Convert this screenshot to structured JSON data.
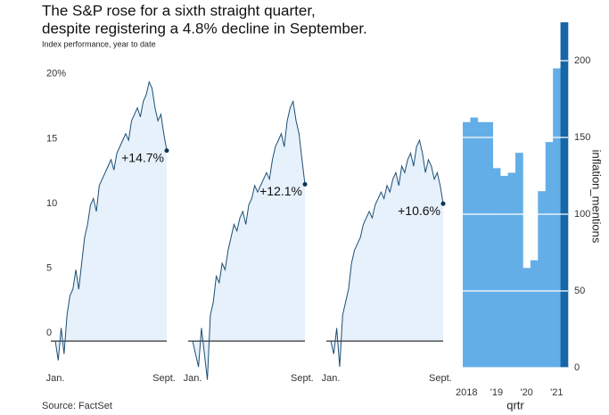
{
  "title_lines": [
    "The S&P rose for a sixth straight quarter,",
    "despite registering a 4.8% decline in September."
  ],
  "subtitle": "Index performance, year to date",
  "source": "Source: FactSet",
  "chart_data": [
    {
      "type": "area",
      "x": [
        0,
        1,
        2,
        3,
        4,
        5,
        6,
        7,
        8,
        9,
        10,
        11,
        12,
        13,
        14,
        15,
        16,
        17,
        18,
        19,
        20,
        21,
        22,
        23,
        24,
        25,
        26,
        27,
        28,
        29,
        30,
        31,
        32,
        33,
        34,
        35,
        36,
        37,
        38
      ],
      "values": [
        0,
        -1.5,
        1,
        -1,
        2,
        3.5,
        4,
        5.5,
        4,
        6,
        8,
        9,
        10.5,
        11,
        10,
        12,
        12.5,
        13,
        13.5,
        14,
        13.2,
        14.5,
        15,
        15.5,
        16,
        15.5,
        17,
        17.5,
        18,
        17.3,
        18.5,
        19,
        20,
        19.5,
        18,
        17,
        17.5,
        16,
        14.7
      ],
      "annotation": "+14.7%",
      "color": "#1d4f73",
      "fill": "#e6f1fc",
      "xlim": [
        0,
        38
      ],
      "xticks": [
        {
          "value": 0,
          "label": "Jan."
        },
        {
          "value": 35,
          "label": "Sept."
        }
      ],
      "ylim": [
        -2.2,
        20.4
      ],
      "yticks": [
        0,
        5,
        10,
        15,
        {
          "value": 20,
          "label": "20%"
        }
      ]
    },
    {
      "type": "area",
      "x": [
        0,
        1,
        2,
        3,
        4,
        5,
        6,
        7,
        8,
        9,
        10,
        11,
        12,
        13,
        14,
        15,
        16,
        17,
        18,
        19,
        20,
        21,
        22,
        23,
        24,
        25,
        26,
        27,
        28,
        29,
        30,
        31,
        32,
        33,
        34,
        35,
        36,
        37,
        38
      ],
      "values": [
        0,
        -1,
        -2,
        1,
        -1,
        -3,
        2,
        3,
        5,
        4.5,
        6,
        5.5,
        7,
        8,
        9,
        8.5,
        9.5,
        10,
        9,
        10.5,
        11,
        12,
        11.5,
        12,
        12.5,
        13,
        12.5,
        14,
        15,
        15.5,
        16,
        15,
        17,
        18,
        18.5,
        17,
        16,
        14,
        12.1
      ],
      "annotation": "+12.1%",
      "color": "#1d4f73",
      "fill": "#e6f1fc",
      "xlim": [
        0,
        38
      ],
      "xticks": [
        {
          "value": 0,
          "label": "Jan."
        },
        {
          "value": 35,
          "label": "Sept."
        }
      ],
      "ylim": [
        -2.2,
        20.4
      ]
    },
    {
      "type": "area",
      "x": [
        0,
        1,
        2,
        3,
        4,
        5,
        6,
        7,
        8,
        9,
        10,
        11,
        12,
        13,
        14,
        15,
        16,
        17,
        18,
        19,
        20,
        21,
        22,
        23,
        24,
        25,
        26,
        27,
        28,
        29,
        30,
        31,
        32,
        33,
        34,
        35,
        36,
        37,
        38
      ],
      "values": [
        0,
        -1,
        1,
        -2,
        2,
        3,
        4,
        6,
        7,
        7.5,
        8,
        9,
        9.5,
        10,
        9.5,
        10.5,
        11,
        11.5,
        11,
        12,
        11.5,
        12.5,
        13,
        12,
        13.5,
        13,
        14,
        14.5,
        13.5,
        15,
        15.5,
        14.5,
        13,
        14,
        13.5,
        12.5,
        13,
        12,
        10.6
      ],
      "annotation": "+10.6%",
      "color": "#1d4f73",
      "fill": "#e6f1fc",
      "xlim": [
        0,
        38
      ],
      "xticks": [
        {
          "value": 0,
          "label": "Jan."
        },
        {
          "value": 35,
          "label": "Sept."
        }
      ],
      "ylim": [
        -2.2,
        20.4
      ]
    },
    {
      "type": "bar",
      "x_label": "qrtr",
      "y_label": "inflation_mentions",
      "categories": [
        "2018",
        null,
        null,
        null,
        "'19",
        null,
        null,
        null,
        "'20",
        null,
        null,
        null,
        "'21",
        null
      ],
      "values": [
        160,
        163,
        160,
        160,
        130,
        125,
        127,
        140,
        65,
        70,
        115,
        147,
        195,
        225
      ],
      "colors": [
        "#64aee8",
        "#64aee8",
        "#64aee8",
        "#64aee8",
        "#64aee8",
        "#64aee8",
        "#64aee8",
        "#64aee8",
        "#64aee8",
        "#64aee8",
        "#64aee8",
        "#64aee8",
        "#64aee8",
        "#1766a8"
      ],
      "ylim": [
        0,
        225
      ],
      "yticks": [
        0,
        50,
        100,
        150,
        200
      ],
      "grid": true
    }
  ]
}
